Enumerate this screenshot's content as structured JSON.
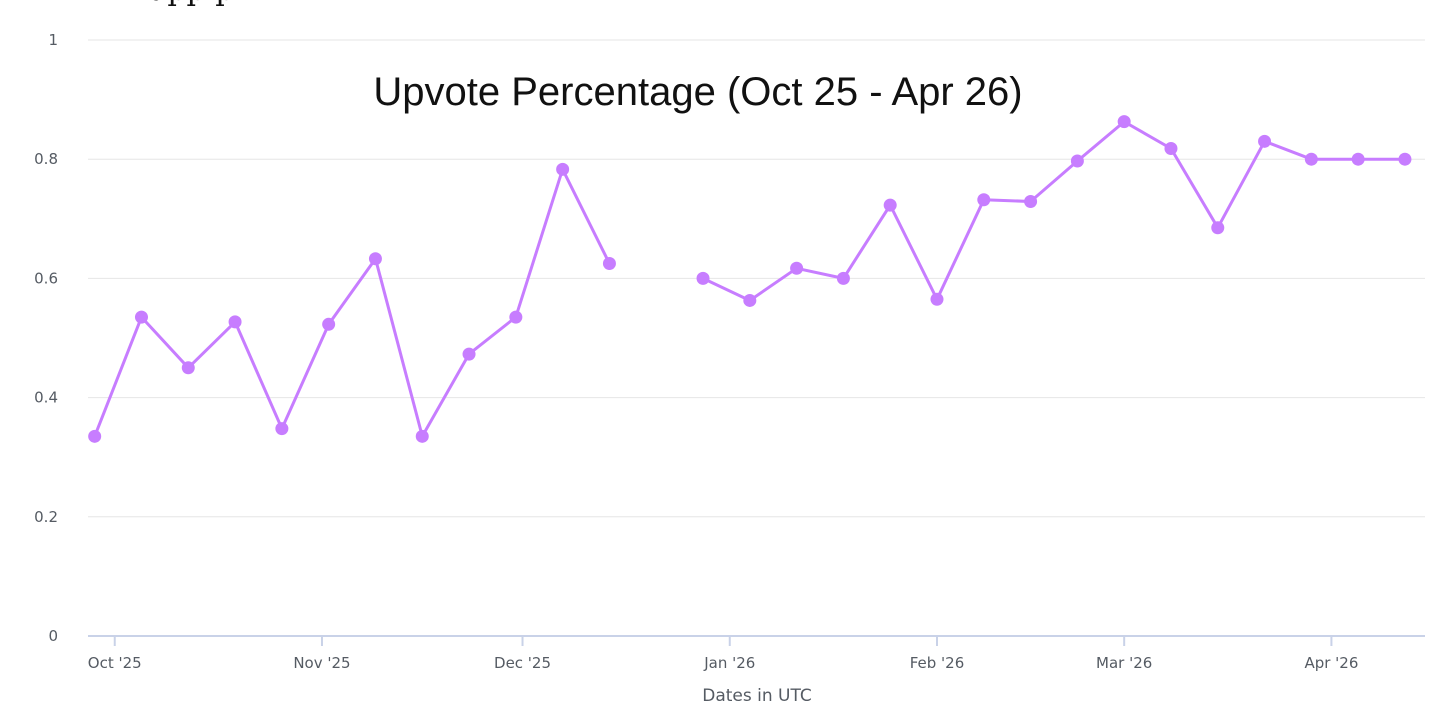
{
  "chart_data": {
    "type": "line",
    "title": "Upvote Percentage (Oct 25 - Apr 26)",
    "top_clipped_text": "upp p",
    "xlabel": "Dates in UTC",
    "ylabel": "",
    "ylim": [
      0,
      1
    ],
    "y_ticks": [
      "0",
      "0.2",
      "0.4",
      "0.6",
      "0.8",
      "1"
    ],
    "x_ticks": [
      {
        "label": "Oct '25",
        "date": "2025-10-01"
      },
      {
        "label": "Nov '25",
        "date": "2025-11-01"
      },
      {
        "label": "Dec '25",
        "date": "2025-12-01"
      },
      {
        "label": "Jan '26",
        "date": "2026-01-01"
      },
      {
        "label": "Feb '26",
        "date": "2026-02-01"
      },
      {
        "label": "Mar '26",
        "date": "2026-03-01"
      },
      {
        "label": "Apr '26",
        "date": "2026-04-01"
      }
    ],
    "x_range": [
      "2025-09-27",
      "2026-04-15"
    ],
    "grid": true,
    "series": [
      {
        "color": "#c77dff",
        "points": [
          {
            "date": "2025-09-28",
            "value": 0.335
          },
          {
            "date": "2025-10-05",
            "value": 0.535
          },
          {
            "date": "2025-10-12",
            "value": 0.45
          },
          {
            "date": "2025-10-19",
            "value": 0.527
          },
          {
            "date": "2025-10-26",
            "value": 0.348
          },
          {
            "date": "2025-11-02",
            "value": 0.523
          },
          {
            "date": "2025-11-09",
            "value": 0.633
          },
          {
            "date": "2025-11-16",
            "value": 0.335
          },
          {
            "date": "2025-11-23",
            "value": 0.473
          },
          {
            "date": "2025-11-30",
            "value": 0.535
          },
          {
            "date": "2025-12-07",
            "value": 0.783
          },
          {
            "date": "2025-12-14",
            "value": 0.625
          },
          {
            "date": "2025-12-28",
            "value": 0.6
          },
          {
            "date": "2026-01-04",
            "value": 0.563
          },
          {
            "date": "2026-01-11",
            "value": 0.617
          },
          {
            "date": "2026-01-18",
            "value": 0.6
          },
          {
            "date": "2026-01-25",
            "value": 0.723
          },
          {
            "date": "2026-02-01",
            "value": 0.565
          },
          {
            "date": "2026-02-08",
            "value": 0.732
          },
          {
            "date": "2026-02-15",
            "value": 0.729
          },
          {
            "date": "2026-02-22",
            "value": 0.797
          },
          {
            "date": "2026-03-01",
            "value": 0.863
          },
          {
            "date": "2026-03-08",
            "value": 0.818
          },
          {
            "date": "2026-03-15",
            "value": 0.685
          },
          {
            "date": "2026-03-22",
            "value": 0.83
          },
          {
            "date": "2026-03-29",
            "value": 0.8
          },
          {
            "date": "2026-04-05",
            "value": 0.8
          },
          {
            "date": "2026-04-12",
            "value": 0.8
          }
        ]
      }
    ]
  }
}
